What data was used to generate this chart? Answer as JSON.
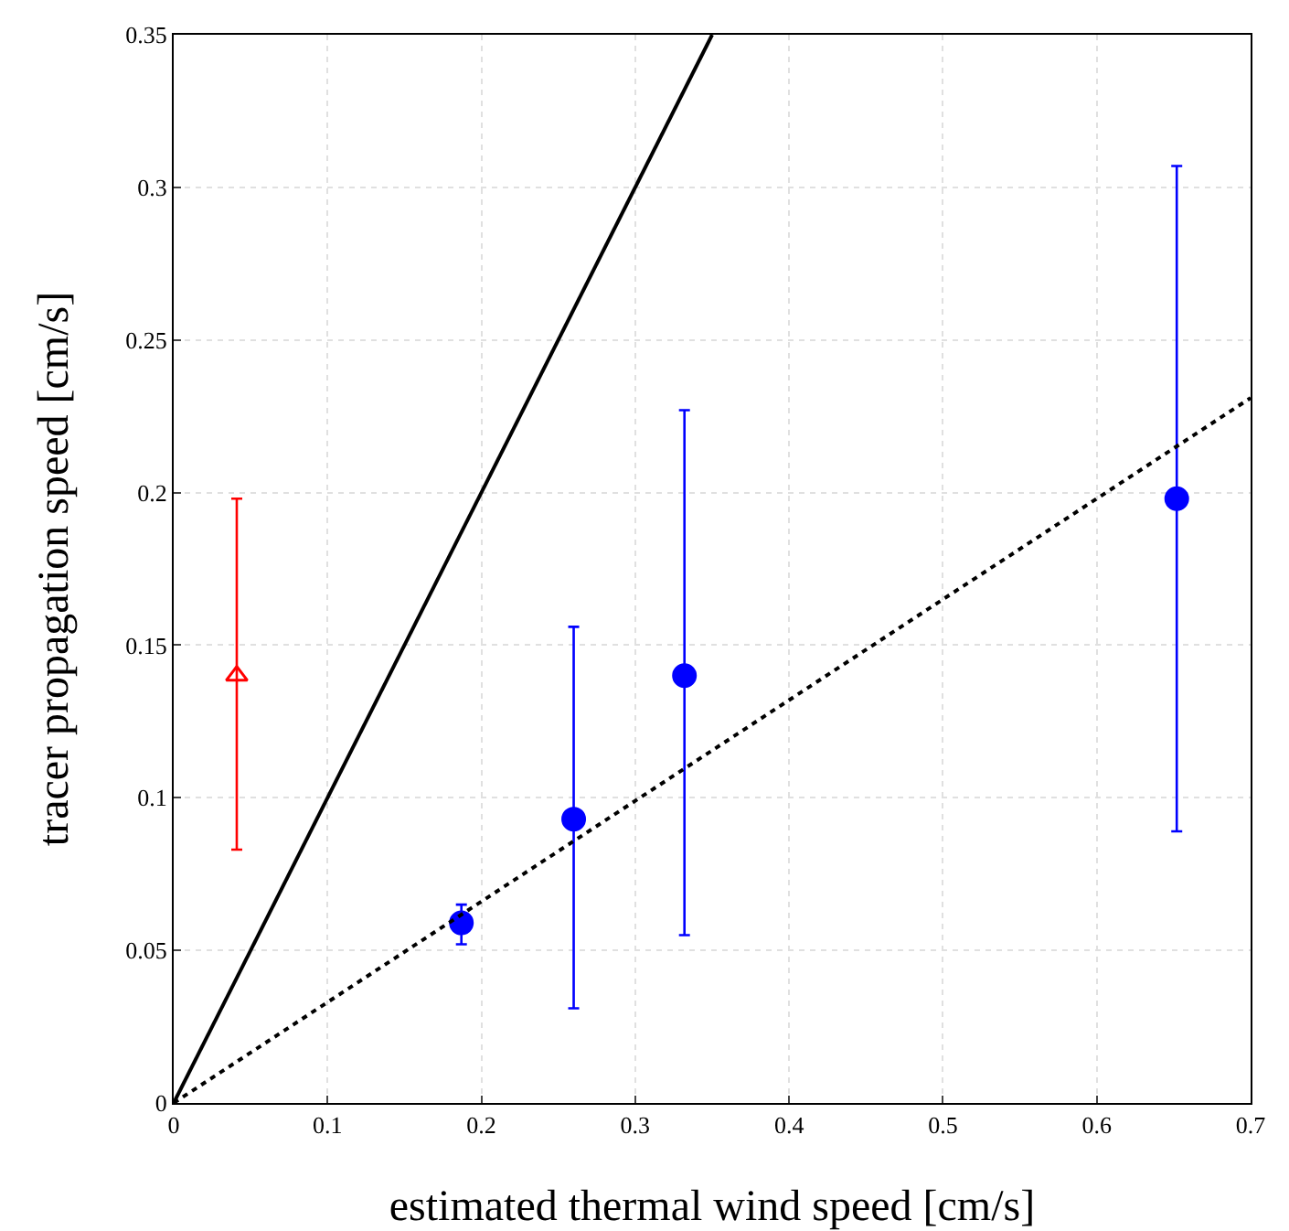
{
  "chart_data": {
    "type": "scatter",
    "xlabel": "estimated thermal wind speed [cm/s]",
    "ylabel": "tracer propagation speed [cm/s]",
    "xlim": [
      0,
      0.7
    ],
    "xticks": [
      0,
      0.1,
      0.2,
      0.3,
      0.4,
      0.5,
      0.6,
      0.7
    ],
    "ylim": [
      0,
      0.35
    ],
    "yticks": [
      0,
      0.05,
      0.1,
      0.15,
      0.2,
      0.25,
      0.3,
      0.35
    ],
    "grid": true,
    "series": [
      {
        "color": "#ff0000",
        "marker": "triangle",
        "x": [
          0.041
        ],
        "values": [
          0.14
        ],
        "errors": [
          [
            0.083,
            0.198
          ]
        ]
      },
      {
        "color": "#0000ff",
        "marker": "circle",
        "x": [
          0.187,
          0.26,
          0.332,
          0.652
        ],
        "values": [
          0.059,
          0.093,
          0.14,
          0.198
        ],
        "errors": [
          [
            0.052,
            0.065
          ],
          [
            0.031,
            0.156
          ],
          [
            0.055,
            0.227
          ],
          [
            0.089,
            0.307
          ]
        ]
      },
      {
        "type": "line",
        "color": "#000000",
        "marker": "none",
        "line_style": "solid",
        "x": [
          0,
          0.35
        ],
        "values": [
          0,
          0.35
        ]
      },
      {
        "type": "line",
        "color": "#000000",
        "marker": "none",
        "line_style": "dotted",
        "x": [
          0,
          0.7
        ],
        "values": [
          0,
          0.231
        ]
      }
    ]
  }
}
